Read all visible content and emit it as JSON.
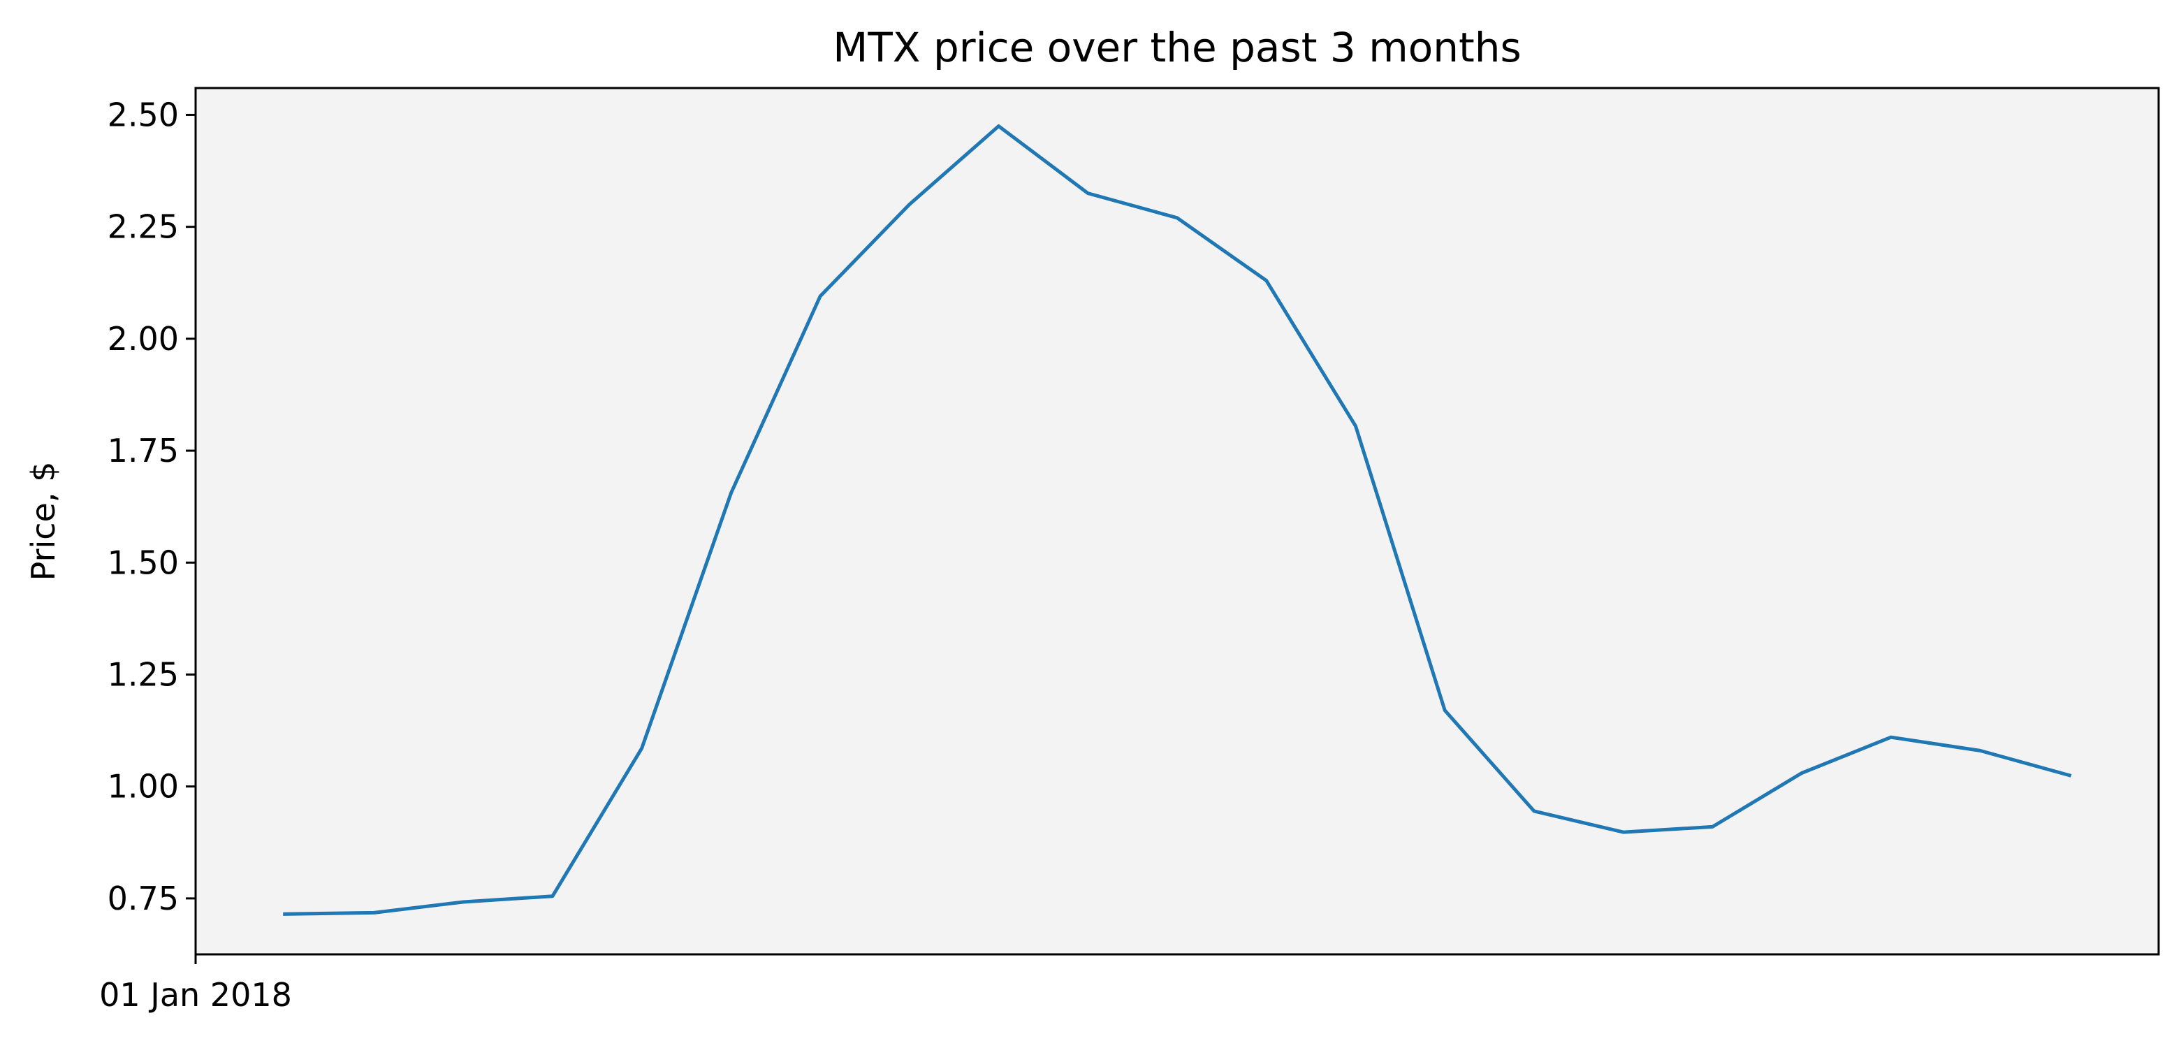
{
  "chart_data": {
    "type": "line",
    "title": "MTX price over the past 3 months",
    "xlabel": "",
    "ylabel": "Price, $",
    "x_tick_labels": [
      "01 Jan 2018"
    ],
    "x_tick_positions": [
      0
    ],
    "xlim": [
      0,
      22
    ],
    "ylim": [
      0.625,
      2.56
    ],
    "y_ticks": [
      0.75,
      1.0,
      1.25,
      1.5,
      1.75,
      2.0,
      2.25,
      2.5
    ],
    "y_tick_labels": [
      "0.75",
      "1.00",
      "1.25",
      "1.50",
      "1.75",
      "2.00",
      "2.25",
      "2.50"
    ],
    "grid": false,
    "series": [
      {
        "name": "MTX",
        "color": "#1f77b4",
        "x": [
          1,
          2,
          3,
          4,
          5,
          6,
          7,
          8,
          9,
          10,
          11,
          12,
          13,
          14,
          15,
          16,
          17,
          18,
          19,
          20,
          21
        ],
        "values": [
          0.715,
          0.718,
          0.742,
          0.755,
          1.085,
          1.655,
          2.095,
          2.3,
          2.475,
          2.325,
          2.27,
          2.13,
          1.805,
          1.17,
          0.945,
          0.898,
          0.91,
          1.03,
          1.11,
          1.08,
          1.025
        ]
      }
    ],
    "colors": {
      "plot_background": "#f3f3f3",
      "line": "#1f77b4",
      "axis": "#000000"
    }
  }
}
